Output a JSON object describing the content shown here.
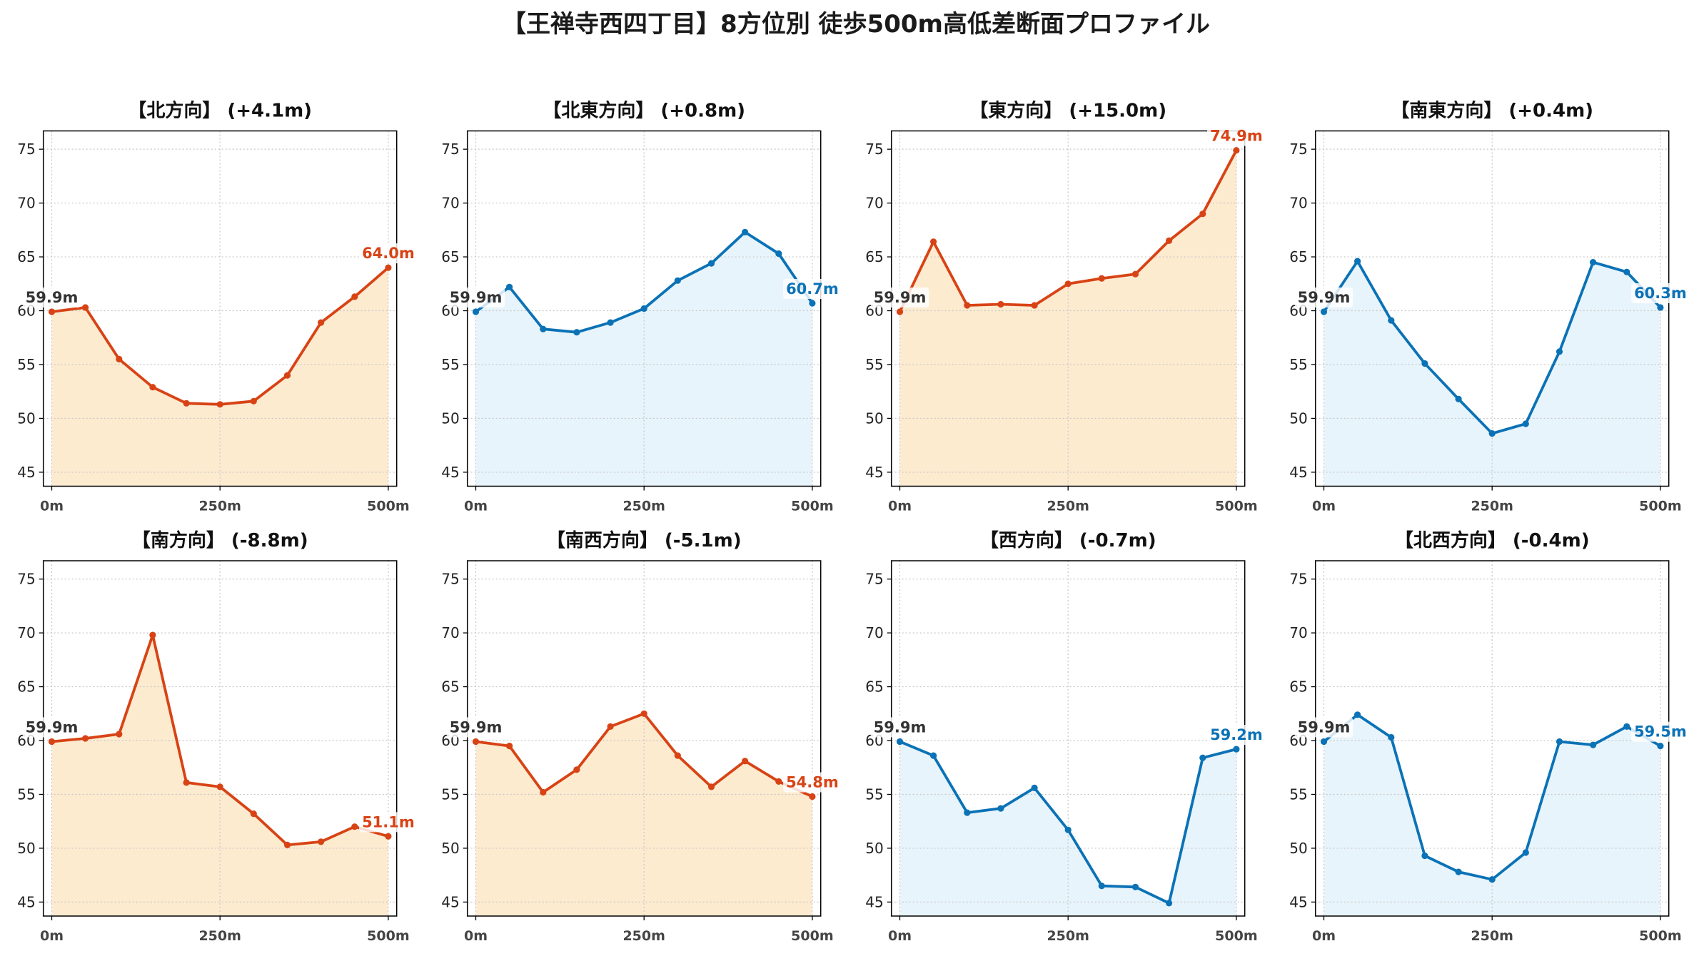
{
  "title": "【王禅寺西四丁目】8方位別 徒歩500m高低差断面プロファイル",
  "colors": {
    "up_down": "#d84315",
    "flat": "#0b72b6",
    "up_down_fill": "#fdebd0",
    "flat_fill": "#e8f4fb",
    "start_label": "#333333"
  },
  "chart_data": [
    {
      "type": "area",
      "title": "【北方向】 (+4.1m)",
      "x": [
        0,
        50,
        100,
        150,
        200,
        250,
        300,
        350,
        400,
        450,
        500
      ],
      "series": [
        {
          "values": [
            59.9,
            60.3,
            55.5,
            52.9,
            51.4,
            51.3,
            51.6,
            54.0,
            58.9,
            61.3,
            64.0
          ],
          "color": "#d84315",
          "fill": "#fdebd0"
        }
      ],
      "annotations": [
        {
          "x": 0,
          "y": 59.9,
          "text": "59.9m",
          "color": "#333333"
        },
        {
          "x": 500,
          "y": 64.0,
          "text": "64.0m",
          "color": "#d84315"
        }
      ],
      "xlim": [
        -12.5,
        512.5
      ],
      "ylim": [
        43.7,
        76.7
      ],
      "xticks": [
        0,
        250,
        500
      ],
      "xtick_labels": [
        "0m",
        "250m",
        "500m"
      ],
      "yticks": [
        45,
        50,
        55,
        60,
        65,
        70,
        75
      ],
      "ytick_labels": [
        "45",
        "50",
        "55",
        "60",
        "65",
        "70",
        "75"
      ],
      "grid": true
    },
    {
      "type": "area",
      "title": "【北東方向】 (+0.8m)",
      "x": [
        0,
        50,
        100,
        150,
        200,
        250,
        300,
        350,
        400,
        450,
        500
      ],
      "series": [
        {
          "values": [
            59.9,
            62.2,
            58.3,
            58.0,
            58.9,
            60.2,
            62.8,
            64.4,
            67.3,
            65.3,
            60.7
          ],
          "color": "#0b72b6",
          "fill": "#e8f4fb"
        }
      ],
      "annotations": [
        {
          "x": 0,
          "y": 59.9,
          "text": "59.9m",
          "color": "#333333"
        },
        {
          "x": 500,
          "y": 60.7,
          "text": "60.7m",
          "color": "#0b72b6"
        }
      ],
      "xlim": [
        -12.5,
        512.5
      ],
      "ylim": [
        43.7,
        76.7
      ],
      "xticks": [
        0,
        250,
        500
      ],
      "xtick_labels": [
        "0m",
        "250m",
        "500m"
      ],
      "yticks": [
        45,
        50,
        55,
        60,
        65,
        70,
        75
      ],
      "ytick_labels": [
        "45",
        "50",
        "55",
        "60",
        "65",
        "70",
        "75"
      ],
      "grid": true
    },
    {
      "type": "area",
      "title": "【東方向】 (+15.0m)",
      "x": [
        0,
        50,
        100,
        150,
        200,
        250,
        300,
        350,
        400,
        450,
        500
      ],
      "series": [
        {
          "values": [
            59.9,
            66.4,
            60.5,
            60.6,
            60.5,
            62.5,
            63.0,
            63.4,
            66.5,
            69.0,
            74.9
          ],
          "color": "#d84315",
          "fill": "#fdebd0"
        }
      ],
      "annotations": [
        {
          "x": 0,
          "y": 59.9,
          "text": "59.9m",
          "color": "#333333"
        },
        {
          "x": 500,
          "y": 74.9,
          "text": "74.9m",
          "color": "#d84315"
        }
      ],
      "xlim": [
        -12.5,
        512.5
      ],
      "ylim": [
        43.7,
        76.7
      ],
      "xticks": [
        0,
        250,
        500
      ],
      "xtick_labels": [
        "0m",
        "250m",
        "500m"
      ],
      "yticks": [
        45,
        50,
        55,
        60,
        65,
        70,
        75
      ],
      "ytick_labels": [
        "45",
        "50",
        "55",
        "60",
        "65",
        "70",
        "75"
      ],
      "grid": true
    },
    {
      "type": "area",
      "title": "【南東方向】 (+0.4m)",
      "x": [
        0,
        50,
        100,
        150,
        200,
        250,
        300,
        350,
        400,
        450,
        500
      ],
      "series": [
        {
          "values": [
            59.9,
            64.6,
            59.1,
            55.1,
            51.8,
            48.6,
            49.5,
            56.2,
            64.5,
            63.6,
            60.3
          ],
          "color": "#0b72b6",
          "fill": "#e8f4fb"
        }
      ],
      "annotations": [
        {
          "x": 0,
          "y": 59.9,
          "text": "59.9m",
          "color": "#333333"
        },
        {
          "x": 500,
          "y": 60.3,
          "text": "60.3m",
          "color": "#0b72b6"
        }
      ],
      "xlim": [
        -12.5,
        512.5
      ],
      "ylim": [
        43.7,
        76.7
      ],
      "xticks": [
        0,
        250,
        500
      ],
      "xtick_labels": [
        "0m",
        "250m",
        "500m"
      ],
      "yticks": [
        45,
        50,
        55,
        60,
        65,
        70,
        75
      ],
      "ytick_labels": [
        "45",
        "50",
        "55",
        "60",
        "65",
        "70",
        "75"
      ],
      "grid": true
    },
    {
      "type": "area",
      "title": "【南方向】 (-8.8m)",
      "x": [
        0,
        50,
        100,
        150,
        200,
        250,
        300,
        350,
        400,
        450,
        500
      ],
      "series": [
        {
          "values": [
            59.9,
            60.2,
            60.6,
            69.8,
            56.1,
            55.7,
            53.2,
            50.3,
            50.6,
            52.0,
            51.1
          ],
          "color": "#d84315",
          "fill": "#fdebd0"
        }
      ],
      "annotations": [
        {
          "x": 0,
          "y": 59.9,
          "text": "59.9m",
          "color": "#333333"
        },
        {
          "x": 500,
          "y": 51.1,
          "text": "51.1m",
          "color": "#d84315"
        }
      ],
      "xlim": [
        -12.5,
        512.5
      ],
      "ylim": [
        43.7,
        76.7
      ],
      "xticks": [
        0,
        250,
        500
      ],
      "xtick_labels": [
        "0m",
        "250m",
        "500m"
      ],
      "yticks": [
        45,
        50,
        55,
        60,
        65,
        70,
        75
      ],
      "ytick_labels": [
        "45",
        "50",
        "55",
        "60",
        "65",
        "70",
        "75"
      ],
      "grid": true
    },
    {
      "type": "area",
      "title": "【南西方向】 (-5.1m)",
      "x": [
        0,
        50,
        100,
        150,
        200,
        250,
        300,
        350,
        400,
        450,
        500
      ],
      "series": [
        {
          "values": [
            59.9,
            59.5,
            55.2,
            57.3,
            61.3,
            62.5,
            58.6,
            55.7,
            58.1,
            56.2,
            54.8
          ],
          "color": "#d84315",
          "fill": "#fdebd0"
        }
      ],
      "annotations": [
        {
          "x": 0,
          "y": 59.9,
          "text": "59.9m",
          "color": "#333333"
        },
        {
          "x": 500,
          "y": 54.8,
          "text": "54.8m",
          "color": "#d84315"
        }
      ],
      "xlim": [
        -12.5,
        512.5
      ],
      "ylim": [
        43.7,
        76.7
      ],
      "xticks": [
        0,
        250,
        500
      ],
      "xtick_labels": [
        "0m",
        "250m",
        "500m"
      ],
      "yticks": [
        45,
        50,
        55,
        60,
        65,
        70,
        75
      ],
      "ytick_labels": [
        "45",
        "50",
        "55",
        "60",
        "65",
        "70",
        "75"
      ],
      "grid": true
    },
    {
      "type": "area",
      "title": "【西方向】 (-0.7m)",
      "x": [
        0,
        50,
        100,
        150,
        200,
        250,
        300,
        350,
        400,
        450,
        500
      ],
      "series": [
        {
          "values": [
            59.9,
            58.6,
            53.3,
            53.7,
            55.6,
            51.7,
            46.5,
            46.4,
            44.9,
            58.4,
            59.2
          ],
          "color": "#0b72b6",
          "fill": "#e8f4fb"
        }
      ],
      "annotations": [
        {
          "x": 0,
          "y": 59.9,
          "text": "59.9m",
          "color": "#333333"
        },
        {
          "x": 500,
          "y": 59.2,
          "text": "59.2m",
          "color": "#0b72b6"
        }
      ],
      "xlim": [
        -12.5,
        512.5
      ],
      "ylim": [
        43.7,
        76.7
      ],
      "xticks": [
        0,
        250,
        500
      ],
      "xtick_labels": [
        "0m",
        "250m",
        "500m"
      ],
      "yticks": [
        45,
        50,
        55,
        60,
        65,
        70,
        75
      ],
      "ytick_labels": [
        "45",
        "50",
        "55",
        "60",
        "65",
        "70",
        "75"
      ],
      "grid": true
    },
    {
      "type": "area",
      "title": "【北西方向】 (-0.4m)",
      "x": [
        0,
        50,
        100,
        150,
        200,
        250,
        300,
        350,
        400,
        450,
        500
      ],
      "series": [
        {
          "values": [
            59.9,
            62.4,
            60.3,
            49.3,
            47.8,
            47.1,
            49.6,
            59.9,
            59.6,
            61.3,
            59.5
          ],
          "color": "#0b72b6",
          "fill": "#e8f4fb"
        }
      ],
      "annotations": [
        {
          "x": 0,
          "y": 59.9,
          "text": "59.9m",
          "color": "#333333"
        },
        {
          "x": 500,
          "y": 59.5,
          "text": "59.5m",
          "color": "#0b72b6"
        }
      ],
      "xlim": [
        -12.5,
        512.5
      ],
      "ylim": [
        43.7,
        76.7
      ],
      "xticks": [
        0,
        250,
        500
      ],
      "xtick_labels": [
        "0m",
        "250m",
        "500m"
      ],
      "yticks": [
        45,
        50,
        55,
        60,
        65,
        70,
        75
      ],
      "ytick_labels": [
        "45",
        "50",
        "55",
        "60",
        "65",
        "70",
        "75"
      ],
      "grid": true
    }
  ]
}
